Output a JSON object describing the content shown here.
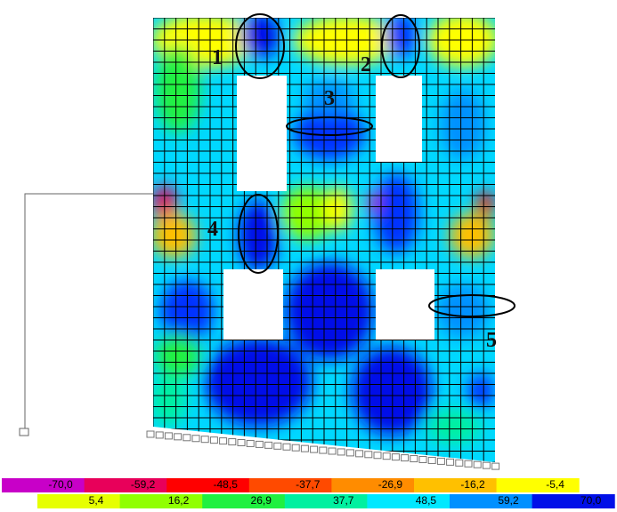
{
  "annotations": [
    "1",
    "2",
    "3",
    "4",
    "5"
  ],
  "legend": {
    "negative": [
      {
        "label": "-70,0",
        "color": "#c800c8"
      },
      {
        "label": "-59,2",
        "color": "#e8005a"
      },
      {
        "label": "-48,5",
        "color": "#ff0000"
      },
      {
        "label": "-37,7",
        "color": "#ff4a00"
      },
      {
        "label": "-26,9",
        "color": "#ff8c00"
      },
      {
        "label": "-16,2",
        "color": "#ffc000"
      },
      {
        "label": "-5,4",
        "color": "#ffff00"
      }
    ],
    "positive": [
      {
        "label": "5,4",
        "color": "#e6ff00"
      },
      {
        "label": "16,2",
        "color": "#90ff00"
      },
      {
        "label": "26,9",
        "color": "#20f040"
      },
      {
        "label": "37,7",
        "color": "#00f0a0"
      },
      {
        "label": "48,5",
        "color": "#00e8ff"
      },
      {
        "label": "59,2",
        "color": "#0090ff"
      },
      {
        "label": "70,0",
        "color": "#0010e8"
      }
    ]
  }
}
